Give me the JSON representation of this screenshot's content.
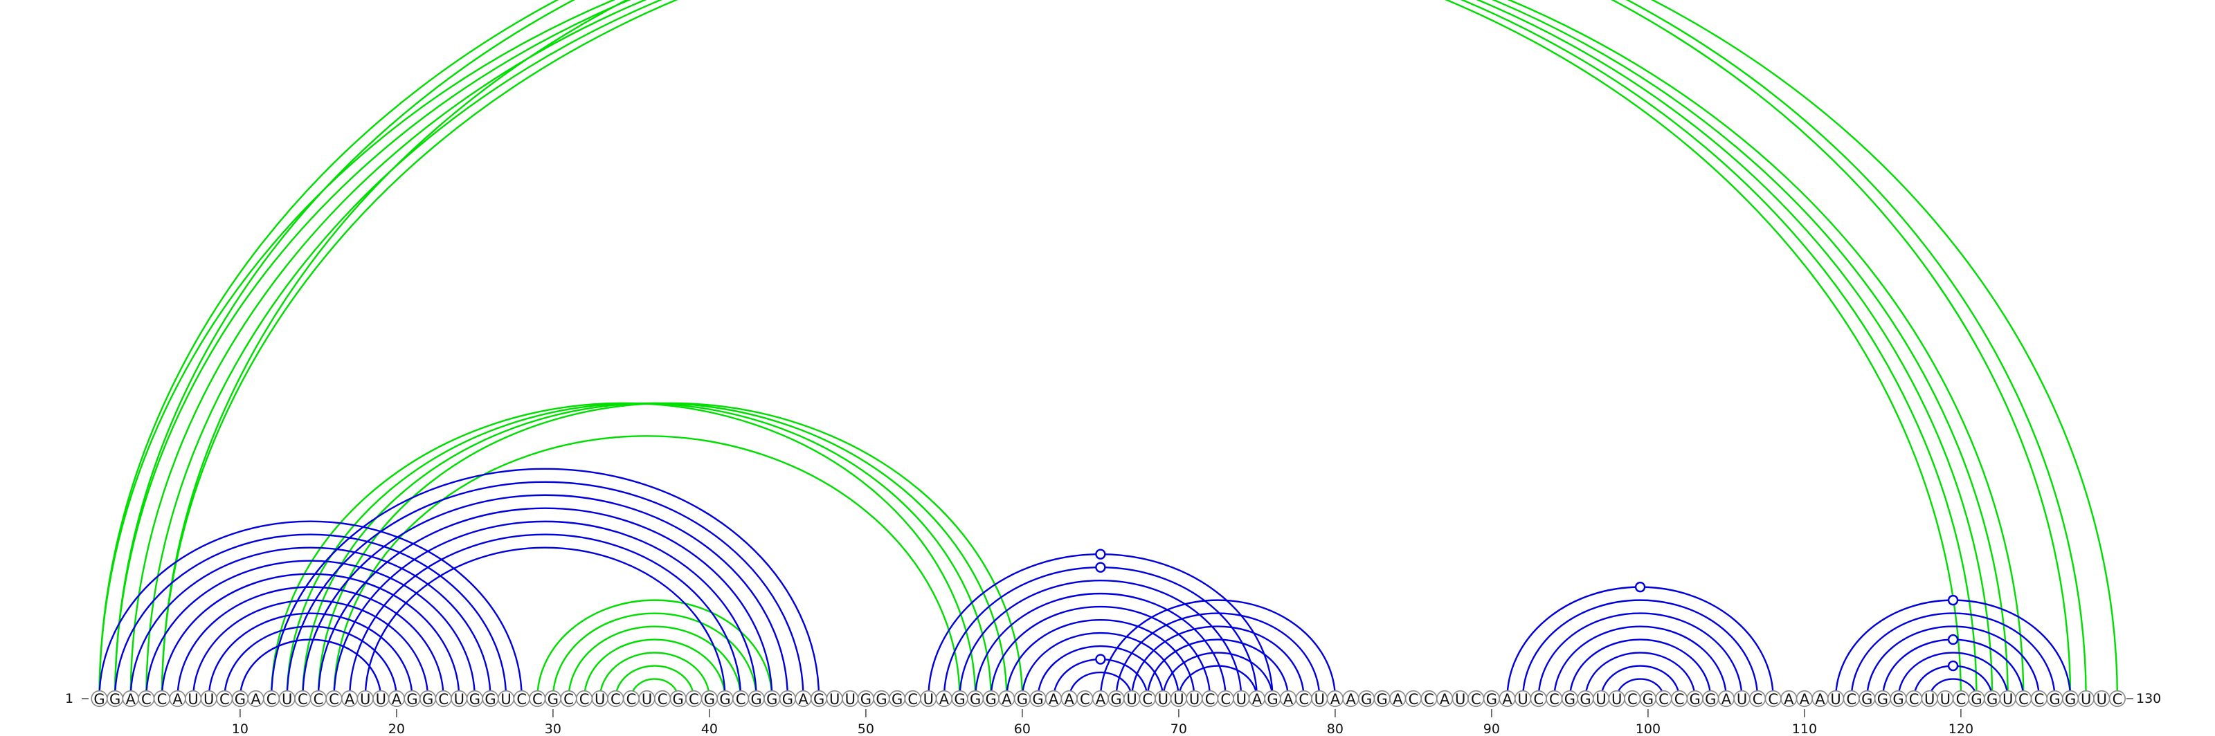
{
  "sequence": "GGACCAUUCGACUCCCAUUAGGCUGGUCCGCCUCCUCGCGGCGGGAGUUGGGCUAGGGAGGAACAGUCUUUCCUAGACUAAGGACCAUCGAUCCGGUUCGCCGGAUCCAAAUCGGGCUUCGGUCCGGUUC",
  "start_label": "1",
  "end_label": "130",
  "ticks": [
    10,
    20,
    30,
    40,
    50,
    60,
    70,
    80,
    90,
    100,
    110,
    120
  ],
  "colors": {
    "green": "#00dd00",
    "blue": "#0000dd"
  },
  "chart_data": {
    "type": "arc",
    "length": 130,
    "series": [
      {
        "color": "green",
        "arcs": [
          [
            1,
            120
          ],
          [
            2,
            121
          ],
          [
            3,
            122
          ],
          [
            4,
            123
          ],
          [
            5,
            124
          ],
          [
            1,
            127
          ],
          [
            2,
            128
          ],
          [
            5,
            130
          ],
          [
            12,
            57
          ],
          [
            13,
            58
          ],
          [
            14,
            59
          ],
          [
            15,
            60
          ],
          [
            16,
            56
          ],
          [
            29,
            44
          ],
          [
            30,
            43
          ],
          [
            31,
            42
          ],
          [
            32,
            41
          ],
          [
            33,
            40
          ],
          [
            34,
            39
          ],
          [
            35,
            38
          ]
        ],
        "markers": [
          [
            1,
            130
          ]
        ]
      },
      {
        "color": "blue",
        "arcs": [
          [
            1,
            28
          ],
          [
            2,
            27
          ],
          [
            3,
            26
          ],
          [
            4,
            25
          ],
          [
            5,
            24
          ],
          [
            6,
            23
          ],
          [
            7,
            22
          ],
          [
            8,
            21
          ],
          [
            9,
            20
          ],
          [
            10,
            19
          ],
          [
            12,
            47
          ],
          [
            13,
            46
          ],
          [
            14,
            45
          ],
          [
            15,
            44
          ],
          [
            16,
            43
          ],
          [
            17,
            42
          ],
          [
            18,
            41
          ],
          [
            54,
            76
          ],
          [
            55,
            75
          ],
          [
            56,
            74
          ],
          [
            57,
            73
          ],
          [
            58,
            72
          ],
          [
            59,
            71
          ],
          [
            60,
            70
          ],
          [
            61,
            69
          ],
          [
            62,
            68
          ],
          [
            63,
            67
          ],
          [
            65,
            80
          ],
          [
            66,
            79
          ],
          [
            67,
            78
          ],
          [
            68,
            77
          ],
          [
            69,
            76
          ],
          [
            70,
            75
          ],
          [
            91,
            108
          ],
          [
            92,
            107
          ],
          [
            93,
            106
          ],
          [
            94,
            105
          ],
          [
            95,
            104
          ],
          [
            96,
            103
          ],
          [
            97,
            102
          ],
          [
            98,
            101
          ],
          [
            112,
            127
          ],
          [
            113,
            126
          ],
          [
            114,
            125
          ],
          [
            115,
            124
          ],
          [
            116,
            123
          ],
          [
            117,
            122
          ],
          [
            118,
            121
          ]
        ],
        "markers": [
          [
            54,
            76
          ],
          [
            55,
            75
          ],
          [
            62,
            68
          ],
          [
            91,
            108
          ],
          [
            112,
            127
          ],
          [
            115,
            124
          ],
          [
            117,
            122
          ]
        ]
      }
    ]
  }
}
